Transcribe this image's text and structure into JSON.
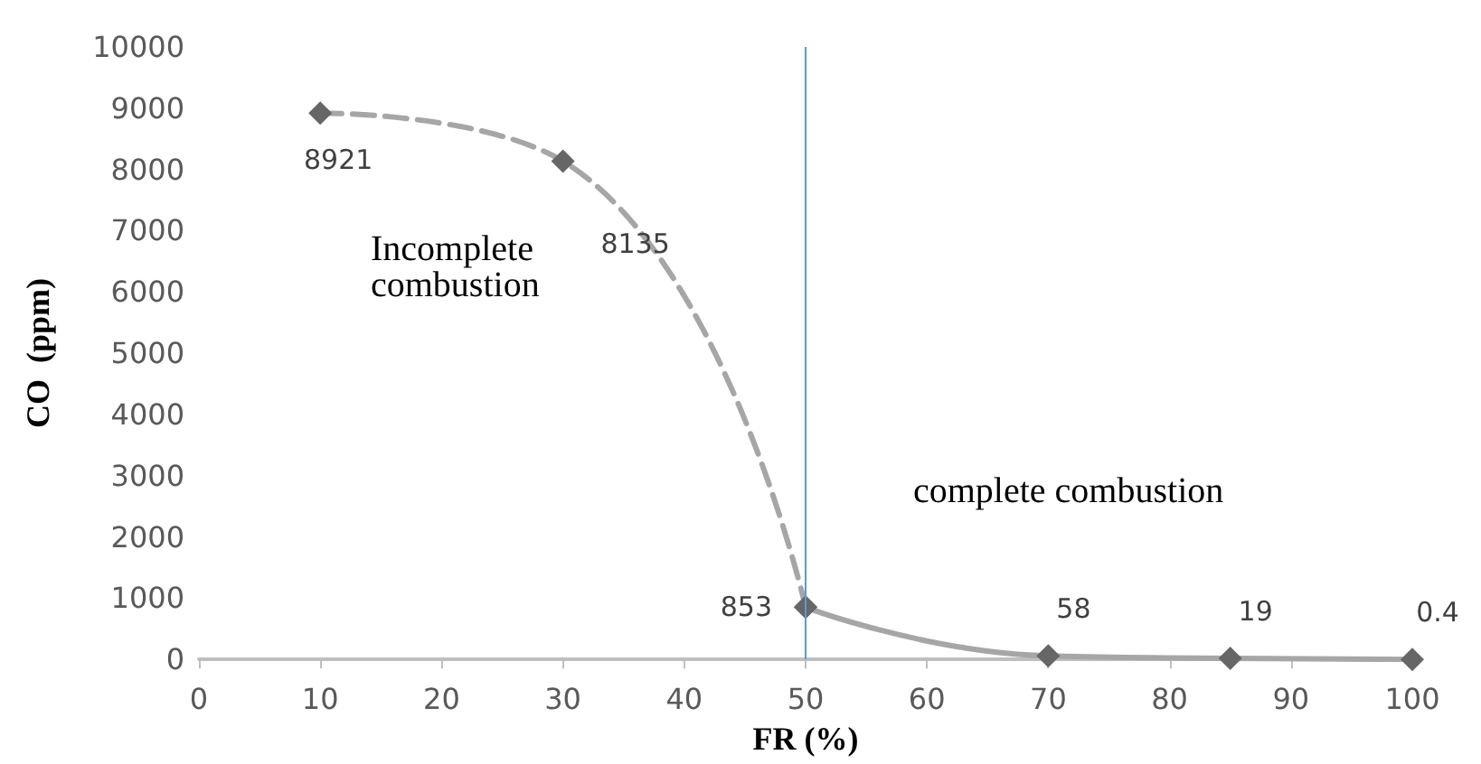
{
  "chart_data": {
    "type": "line",
    "xlabel": "FR (%)",
    "ylabel": "CO  (ppm)",
    "series": [
      {
        "color": "#a6a6a6",
        "line_style": "dashed",
        "x": [
          10,
          30,
          50
        ],
        "values": [
          8921,
          8135,
          853
        ],
        "value_labels": [
          "8921",
          "8135",
          "853"
        ]
      },
      {
        "color": "#a6a6a6",
        "line_style": "solid",
        "x": [
          50,
          70,
          85,
          100
        ],
        "values": [
          853,
          58,
          19,
          0.4
        ],
        "value_labels": [
          null,
          "58",
          "19",
          "0.4"
        ]
      }
    ],
    "marker": "diamond",
    "xlim": [
      0,
      100
    ],
    "xticks": [
      0,
      10,
      20,
      30,
      40,
      50,
      60,
      70,
      80,
      90,
      100
    ],
    "ylim": [
      0,
      10000
    ],
    "yticks": [
      0,
      1000,
      2000,
      3000,
      4000,
      5000,
      6000,
      7000,
      8000,
      9000,
      10000
    ],
    "ref_lines": [
      {
        "axis": "x",
        "value": 50,
        "color": "#5b9bd5"
      }
    ],
    "annotations": [
      "Incomplete\ncombustion",
      "complete combustion"
    ]
  }
}
